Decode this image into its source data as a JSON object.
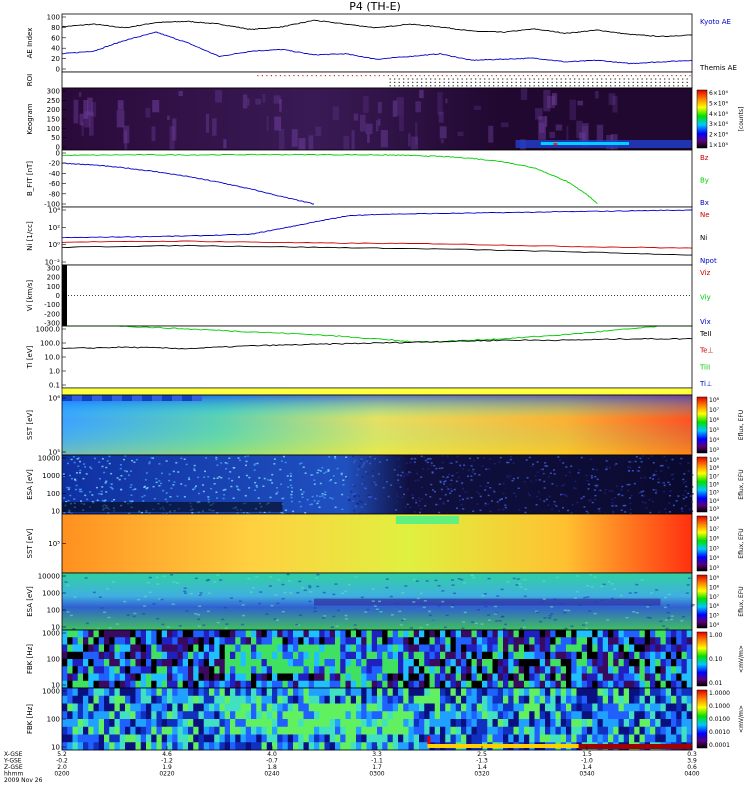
{
  "title": "P4 (TH-E)",
  "chart_data": [
    {
      "type": "line",
      "panel": "ae",
      "ylabel": "AE Index",
      "yticks": [
        "100",
        "80",
        "60",
        "40",
        "20",
        "0"
      ],
      "ylim": [
        0,
        100
      ],
      "legend": [
        "Kyoto AE",
        "Themis AE"
      ],
      "series": [
        {
          "name": "Kyoto AE",
          "color": "#000000",
          "x": [
            0,
            0.05,
            0.1,
            0.15,
            0.2,
            0.25,
            0.3,
            0.35,
            0.4,
            0.45,
            0.5,
            0.55,
            0.6,
            0.65,
            0.7,
            0.75,
            0.8,
            0.85,
            0.9,
            0.95,
            1.0
          ],
          "values": [
            80,
            85,
            78,
            88,
            90,
            85,
            75,
            80,
            92,
            85,
            78,
            85,
            80,
            72,
            70,
            76,
            68,
            74,
            66,
            62,
            65
          ]
        },
        {
          "name": "Themis AE",
          "color": "#0000cc",
          "x": [
            0,
            0.05,
            0.1,
            0.15,
            0.2,
            0.25,
            0.3,
            0.35,
            0.4,
            0.45,
            0.5,
            0.55,
            0.6,
            0.65,
            0.7,
            0.75,
            0.8,
            0.85,
            0.9,
            0.95,
            1.0
          ],
          "values": [
            30,
            35,
            55,
            70,
            50,
            25,
            35,
            38,
            28,
            30,
            20,
            25,
            30,
            18,
            20,
            22,
            15,
            18,
            12,
            15,
            18
          ]
        }
      ]
    },
    {
      "type": "heatmap",
      "panel": "roi",
      "ylabel": "ROI"
    },
    {
      "type": "heatmap",
      "panel": "keogram",
      "ylabel": "Keogram",
      "yticks": [
        "300",
        "250",
        "200",
        "150",
        "100",
        "50",
        "0"
      ],
      "colorbar_ticks": [
        "6×10⁴",
        "5×10⁴",
        "4×10⁴",
        "3×10⁴",
        "2×10⁴",
        "1×10⁴"
      ],
      "colorbar_label": "[counts]"
    },
    {
      "type": "line",
      "panel": "bfield",
      "ylabel": "B_FIT [nT]",
      "yticks": [
        "0",
        "-20",
        "-40",
        "-60",
        "-80",
        "-100"
      ],
      "ylim": [
        -105,
        5
      ],
      "legend": [
        "Bz",
        "By",
        "Bx"
      ],
      "series": [
        {
          "name": "By",
          "color": "#00cc00",
          "x": [
            0,
            0.1,
            0.2,
            0.3,
            0.4,
            0.5,
            0.55,
            0.6,
            0.65,
            0.7,
            0.75,
            0.8,
            0.83,
            0.85
          ],
          "values": [
            -2,
            -1,
            -1,
            -0.5,
            -0.5,
            -1,
            -2,
            -4,
            -8,
            -15,
            -28,
            -55,
            -80,
            -102
          ]
        },
        {
          "name": "Bx",
          "color": "#0000cc",
          "x": [
            0,
            0.05,
            0.1,
            0.15,
            0.2,
            0.25,
            0.3,
            0.35,
            0.4
          ],
          "values": [
            -18,
            -22,
            -28,
            -36,
            -46,
            -58,
            -72,
            -88,
            -103
          ]
        }
      ]
    },
    {
      "type": "line",
      "panel": "density",
      "ylabel": "Ni [1/cc]",
      "yticks": [
        "10⁴",
        "10²",
        "10⁰",
        "10⁻²"
      ],
      "legend": [
        "Ne",
        "Ni",
        "Npot"
      ],
      "series": [
        {
          "name": "Npot",
          "color": "#0000cc",
          "x": [
            0,
            0.1,
            0.2,
            0.3,
            0.35,
            0.4,
            0.45,
            0.5,
            0.6,
            0.7,
            0.8,
            0.9,
            1.0
          ],
          "values": [
            0.8,
            0.9,
            1.0,
            1.2,
            1.9,
            2.6,
            3.3,
            3.5,
            3.6,
            3.7,
            3.8,
            3.9,
            4.0
          ]
        },
        {
          "name": "Ne",
          "color": "#cc0000",
          "x": [
            0,
            0.2,
            0.4,
            0.6,
            0.8,
            1.0
          ],
          "values": [
            0.3,
            0.4,
            0.2,
            0.1,
            -0.2,
            -0.4
          ]
        },
        {
          "name": "Ni",
          "color": "#000000",
          "x": [
            0,
            0.2,
            0.4,
            0.6,
            0.8,
            1.0
          ],
          "values": [
            -0.3,
            -0.1,
            -0.3,
            -0.5,
            -0.8,
            -1.2
          ]
        }
      ]
    },
    {
      "type": "line",
      "panel": "velocity",
      "ylabel": "Vi [km/s]",
      "yticks": [
        "300",
        "200",
        "100",
        "0",
        "-100",
        "-200",
        "-300"
      ],
      "ylim": [
        -350,
        350
      ],
      "legend": [
        "Viz",
        "Viy",
        "Vix"
      ]
    },
    {
      "type": "line",
      "panel": "temperature",
      "ylabel": "Ti [eV]",
      "yticks": [
        "1000.0",
        "100.0",
        "10.0",
        "1.0",
        "0.1"
      ],
      "legend": [
        "TeII",
        "Te⊥",
        "TiII",
        "Ti⊥"
      ],
      "series": [
        {
          "name": "TiII",
          "color": "#00cc00",
          "x": [
            0,
            0.1,
            0.2,
            0.3,
            0.4,
            0.5,
            0.55,
            0.6,
            0.7,
            0.8,
            0.9,
            1.0
          ],
          "values": [
            3.5,
            3.2,
            3.0,
            2.8,
            2.6,
            2.3,
            2.1,
            2.1,
            2.3,
            2.6,
            3.0,
            3.4
          ]
        },
        {
          "name": "TeII",
          "color": "#000000",
          "x": [
            0,
            0.1,
            0.2,
            0.3,
            0.4,
            0.5,
            0.6,
            0.7,
            0.8,
            0.9,
            1.0
          ],
          "values": [
            1.6,
            1.7,
            1.6,
            1.8,
            1.9,
            2.0,
            2.1,
            2.2,
            2.2,
            2.3,
            2.3
          ]
        }
      ]
    },
    {
      "type": "heatmap",
      "panel": "sst_e",
      "ylabel": "SST [eV]",
      "yticks": [
        "10⁶",
        "10⁵"
      ],
      "colorbar_label": "Eflux, EFU",
      "colorbar_ticks": [
        "10⁸",
        "10⁷",
        "10⁶",
        "10⁵",
        "10⁴",
        "10³"
      ]
    },
    {
      "type": "heatmap",
      "panel": "esa_e",
      "ylabel": "ESA [eV]",
      "yticks": [
        "10000",
        "1000",
        "100",
        "10"
      ],
      "colorbar_label": "Eflux, EFU",
      "colorbar_ticks": [
        "10⁹",
        "10⁸",
        "10⁷",
        "10⁶",
        "10⁵",
        "10⁴",
        "10³"
      ]
    },
    {
      "type": "heatmap",
      "panel": "sst_i",
      "ylabel": "SST [eV]",
      "yticks": [
        "10⁵"
      ],
      "colorbar_label": "Eflux, EFU",
      "colorbar_ticks": [
        "10⁸",
        "10⁷",
        "10⁶",
        "10⁵",
        "10⁴",
        "10³"
      ]
    },
    {
      "type": "heatmap",
      "panel": "esa_i",
      "ylabel": "ESA [eV]",
      "yticks": [
        "10000",
        "1000",
        "100",
        "10"
      ],
      "colorbar_label": "Eflux, EFU",
      "colorbar_ticks": [
        "10⁹",
        "10⁸",
        "10⁷",
        "10⁶",
        "10⁵",
        "10⁴"
      ]
    },
    {
      "type": "heatmap",
      "panel": "fbk_e",
      "ylabel": "FBK [Hz]",
      "yticks": [
        "1000",
        "100",
        "10"
      ],
      "colorbar_label": "<mV/m>",
      "colorbar_ticks": [
        "1.00",
        "0.10",
        "0.01"
      ]
    },
    {
      "type": "heatmap",
      "panel": "fbk_b",
      "ylabel": "FBK [Hz]",
      "yticks": [
        "1000",
        "100",
        "10"
      ],
      "colorbar_label": "<mV/m>",
      "colorbar_ticks": [
        "1.0000",
        "0.1000",
        "0.0100",
        "0.0010",
        "0.0001"
      ]
    }
  ],
  "xaxis": {
    "row_labels": [
      "X-GSE",
      "Y-GSE",
      "Z-GSE",
      "hhmm",
      "2009 Nov 26"
    ],
    "ticks": [
      {
        "x": "5.2",
        "y": "-0.2",
        "z": "2.0",
        "t": "0200"
      },
      {
        "x": "4.6",
        "y": "-1.2",
        "z": "1.9",
        "t": "0220"
      },
      {
        "x": "4.0",
        "y": "-0.7",
        "z": "1.8",
        "t": "0240"
      },
      {
        "x": "3.3",
        "y": "-1.1",
        "z": "1.7",
        "t": "0300"
      },
      {
        "x": "2.5",
        "y": "-1.3",
        "z": "1.4",
        "t": "0320"
      },
      {
        "x": "1.5",
        "y": "-1.0",
        "z": "1.4",
        "t": "0340"
      },
      {
        "x": "0.3",
        "y": "3.9",
        "z": "0.6",
        "t": "0400"
      }
    ]
  },
  "colors": {
    "frame": "#000000",
    "text_blue": "#0000cc",
    "text_red": "#cc0000",
    "text_green": "#00cc00"
  }
}
